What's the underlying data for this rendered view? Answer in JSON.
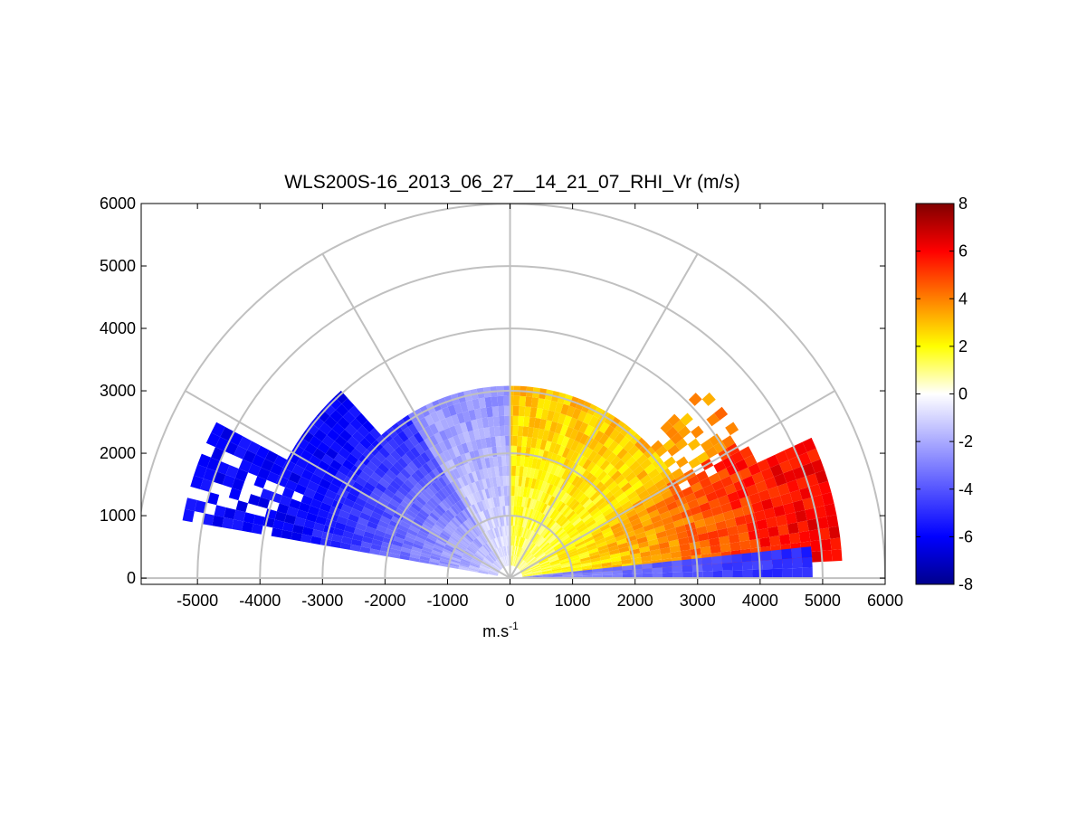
{
  "chart_data": {
    "type": "heatmap",
    "title": "WLS200S-16_2013_06_27__14_21_07_RHI_Vr (m/s)",
    "xlabel": "m.s",
    "xlabel_superscript": "-1",
    "xlim": [
      -5900,
      6000
    ],
    "ylim": [
      -100,
      6000
    ],
    "x_ticks": [
      "-5000",
      "-4000",
      "-3000",
      "-2000",
      "-1000",
      "0",
      "1000",
      "2000",
      "3000",
      "4000",
      "5000",
      "6000"
    ],
    "y_ticks": [
      "0",
      "1000",
      "2000",
      "3000",
      "4000",
      "5000",
      "6000"
    ],
    "polar_grid": {
      "ranges": [
        1000,
        2000,
        3000,
        4000,
        5000,
        6000
      ],
      "angles_deg": [
        0,
        30,
        60,
        90,
        120,
        150,
        180
      ]
    },
    "colorbar": {
      "range": [
        -8,
        8
      ],
      "ticks": [
        "8",
        "6",
        "4",
        "2",
        "0",
        "-2",
        "-4",
        "-6",
        "-8"
      ],
      "colors": [
        "#00008c",
        "#0000ff",
        "#ffffff",
        "#ffff00",
        "#ff0000",
        "#800000"
      ]
    },
    "data_summary": {
      "left_sector_elevation_deg": [
        150,
        180
      ],
      "left_sector_velocity": [
        -6,
        -1
      ],
      "right_sector_elevation_deg": [
        0,
        30
      ],
      "right_sector_velocity": [
        1,
        6
      ],
      "low_right_band_velocity": -5
    }
  }
}
